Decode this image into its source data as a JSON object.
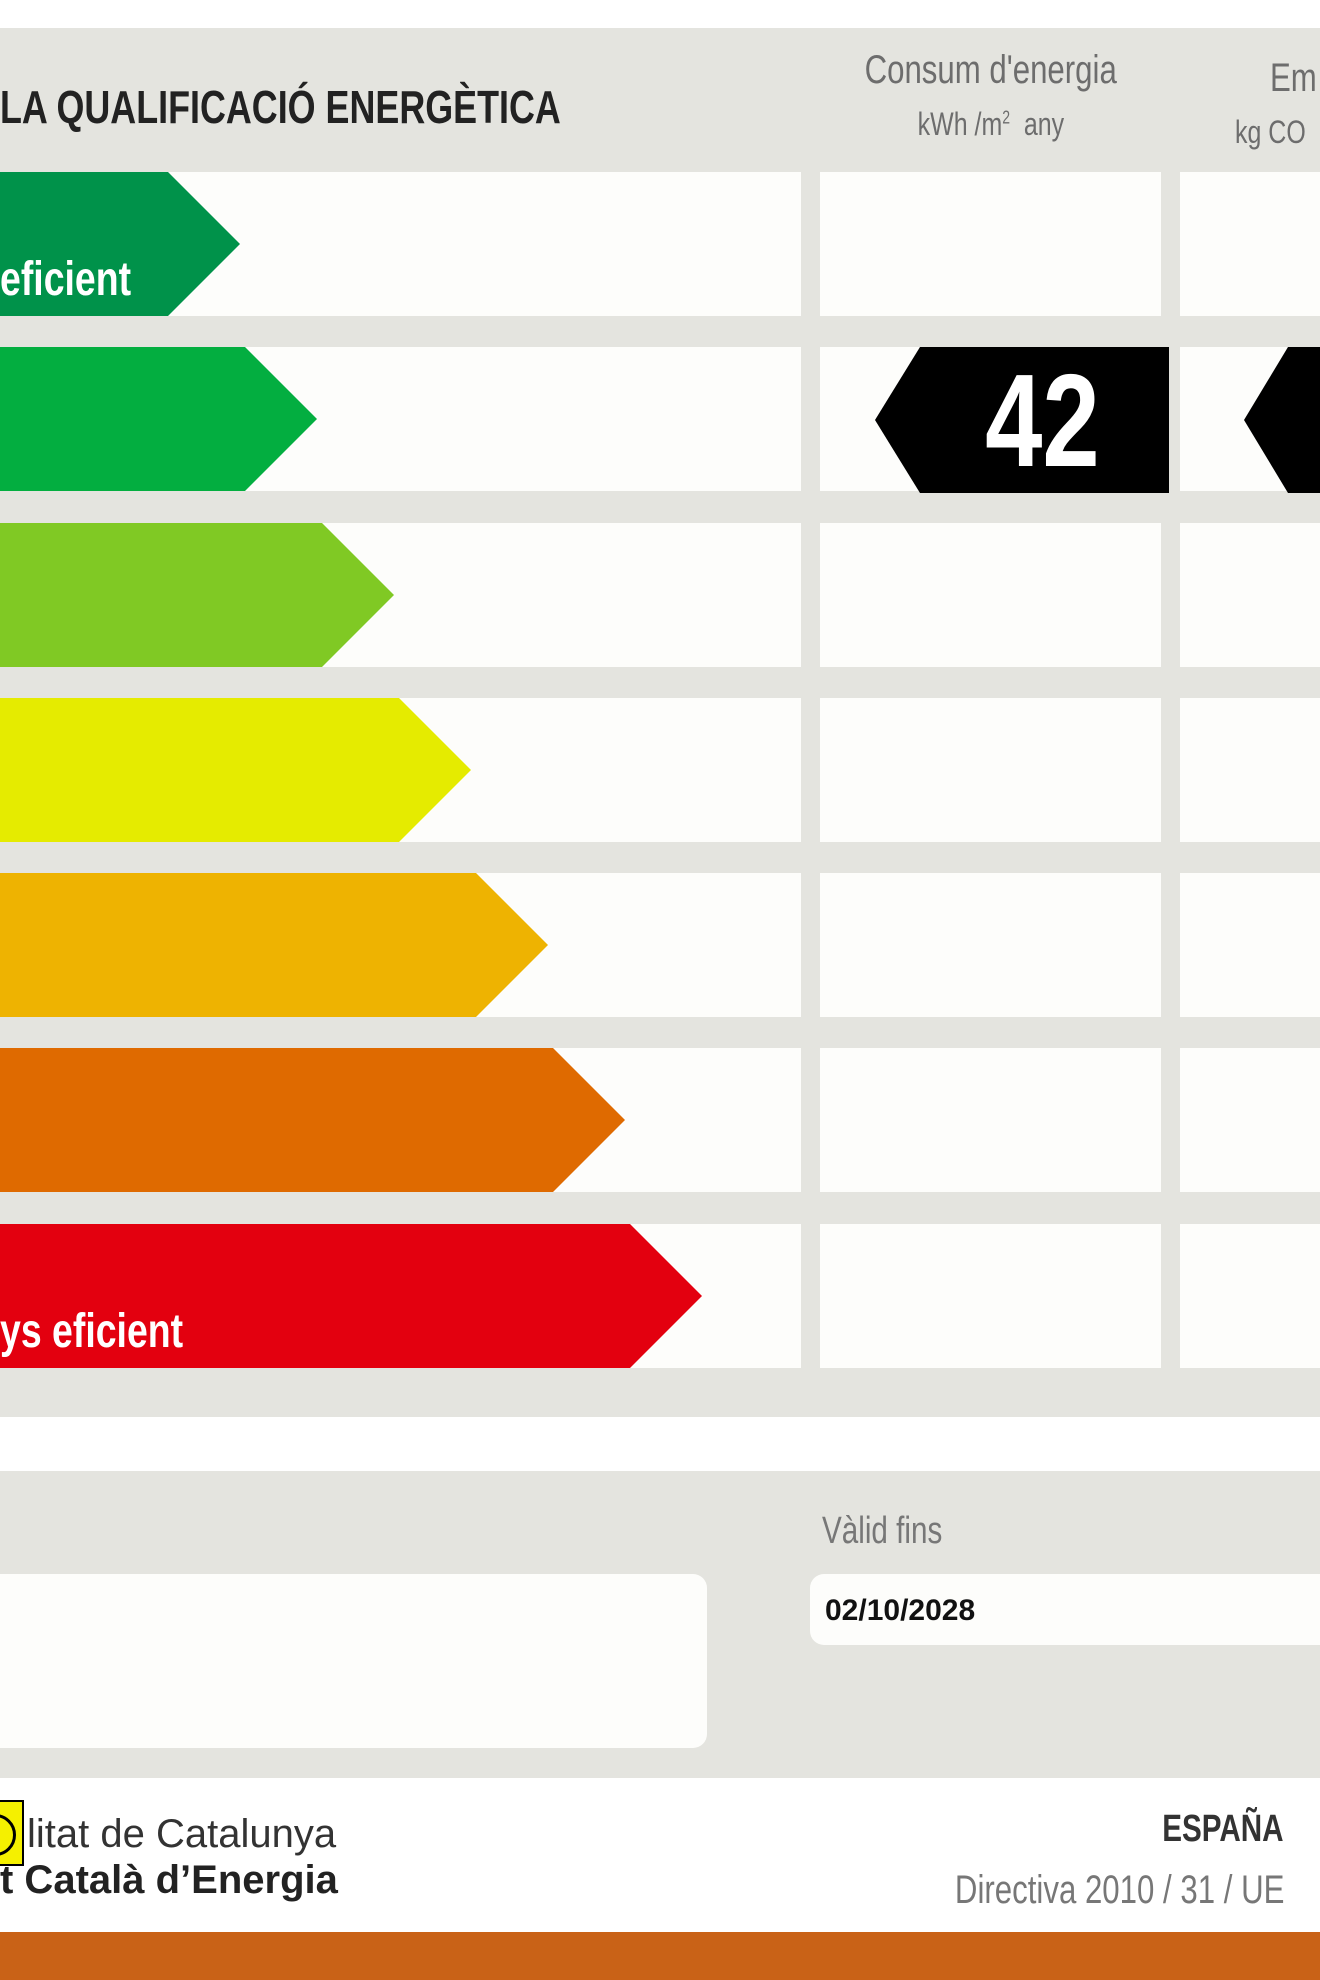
{
  "header": {
    "title": "LA QUALIFICACIÓ ENERGÈTICA",
    "col_energy_title": "Consum d'energia",
    "col_energy_unit": "kWh /m",
    "col_energy_unit_sup": "2",
    "col_energy_unit_suffix": "any",
    "col_emissions_title": "Em",
    "col_emissions_unit": "kg CO"
  },
  "scale": {
    "classes": [
      {
        "color": "#00924a",
        "label": "eficient"
      },
      {
        "color": "#03ae40",
        "label": ""
      },
      {
        "color": "#80c924",
        "label": ""
      },
      {
        "color": "#e5eb00",
        "label": ""
      },
      {
        "color": "#eeb301",
        "label": ""
      },
      {
        "color": "#df6a00",
        "label": ""
      },
      {
        "color": "#e3000f",
        "label": "ys eficient"
      }
    ],
    "energy_rating_row": 2,
    "energy_value": "42"
  },
  "validity": {
    "label": "Vàlid fins",
    "date": "02/10/2028"
  },
  "footer": {
    "logo_line1": "litat de Catalunya",
    "logo_line2": "t Català d’Energia",
    "country": "ESPAÑA",
    "directive": "Directiva 2010 / 31 / UE",
    "accent_color": "#c96217",
    "logo_color": "#f5f000"
  }
}
